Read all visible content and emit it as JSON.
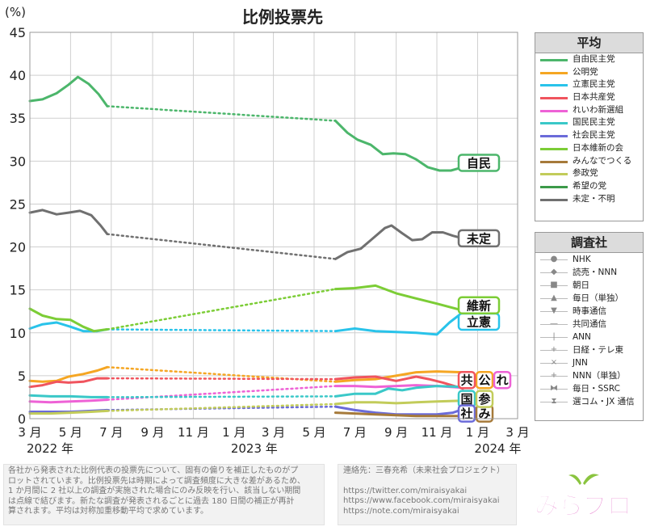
{
  "chart_data": {
    "type": "line",
    "title": "比例投票先",
    "ylabel": "(%)",
    "ylim": [
      0,
      45
    ],
    "yticks": [
      0,
      5,
      10,
      15,
      20,
      25,
      30,
      35,
      40,
      45
    ],
    "xlim": [
      "2022-03-01",
      "2024-03-01"
    ],
    "xticks": [
      {
        "date": "2022-03-01",
        "label": "3 月"
      },
      {
        "date": "2022-05-01",
        "label": "5 月"
      },
      {
        "date": "2022-07-01",
        "label": "7 月"
      },
      {
        "date": "2022-09-01",
        "label": "9 月"
      },
      {
        "date": "2022-11-01",
        "label": "11 月"
      },
      {
        "date": "2023-01-01",
        "label": "1 月"
      },
      {
        "date": "2023-03-01",
        "label": "3 月"
      },
      {
        "date": "2023-05-01",
        "label": "5 月"
      },
      {
        "date": "2023-07-01",
        "label": "7 月"
      },
      {
        "date": "2023-09-01",
        "label": "9 月"
      },
      {
        "date": "2023-11-01",
        "label": "11 月"
      },
      {
        "date": "2024-01-01",
        "label": "1 月"
      },
      {
        "date": "2024-03-01",
        "label": "3 月"
      }
    ],
    "year_labels": [
      {
        "date": "2022-03-01",
        "label": "2022 年"
      },
      {
        "date": "2023-01-01",
        "label": "2023 年"
      },
      {
        "date": "2024-01-01",
        "label": "2024 年"
      }
    ],
    "gap": [
      "2022-06-25",
      "2023-06-02"
    ],
    "grid": true,
    "series": [
      {
        "name": "自由民主党",
        "color": "#4cb66b",
        "end_label": "自民",
        "label_y": 29.8,
        "points": [
          [
            "2022-03-01",
            37.0
          ],
          [
            "2022-03-20",
            37.2
          ],
          [
            "2022-04-10",
            37.9
          ],
          [
            "2022-04-28",
            38.9
          ],
          [
            "2022-05-12",
            39.8
          ],
          [
            "2022-05-28",
            39.0
          ],
          [
            "2022-06-12",
            37.8
          ],
          [
            "2022-06-25",
            36.4
          ],
          [
            "2023-06-02",
            34.7
          ],
          [
            "2023-06-20",
            33.3
          ],
          [
            "2023-07-05",
            32.5
          ],
          [
            "2023-07-25",
            31.9
          ],
          [
            "2023-08-12",
            30.8
          ],
          [
            "2023-08-28",
            30.9
          ],
          [
            "2023-09-15",
            30.8
          ],
          [
            "2023-10-01",
            30.2
          ],
          [
            "2023-10-18",
            29.3
          ],
          [
            "2023-11-05",
            28.9
          ],
          [
            "2023-11-22",
            28.9
          ],
          [
            "2023-12-01",
            29.1
          ],
          [
            "2023-12-10",
            29.3
          ]
        ]
      },
      {
        "name": "公明党",
        "color": "#f5a623",
        "end_label": "公",
        "label_y": 4.5,
        "points": [
          [
            "2022-03-01",
            4.4
          ],
          [
            "2022-03-20",
            4.3
          ],
          [
            "2022-04-10",
            4.4
          ],
          [
            "2022-04-28",
            4.9
          ],
          [
            "2022-05-20",
            5.2
          ],
          [
            "2022-06-10",
            5.6
          ],
          [
            "2022-06-25",
            6.0
          ],
          [
            "2023-06-02",
            4.3
          ],
          [
            "2023-07-01",
            4.5
          ],
          [
            "2023-08-01",
            4.6
          ],
          [
            "2023-09-01",
            5.0
          ],
          [
            "2023-10-01",
            5.4
          ],
          [
            "2023-11-01",
            5.5
          ],
          [
            "2023-12-10",
            5.4
          ]
        ]
      },
      {
        "name": "立憲民主党",
        "color": "#29c3ea",
        "end_label": "立憲",
        "label_y": 11.3,
        "points": [
          [
            "2022-03-01",
            10.5
          ],
          [
            "2022-03-20",
            11.0
          ],
          [
            "2022-04-10",
            11.2
          ],
          [
            "2022-05-01",
            10.7
          ],
          [
            "2022-05-20",
            10.2
          ],
          [
            "2022-06-10",
            10.2
          ],
          [
            "2022-06-25",
            10.4
          ],
          [
            "2023-06-02",
            10.2
          ],
          [
            "2023-07-01",
            10.5
          ],
          [
            "2023-08-01",
            10.2
          ],
          [
            "2023-09-01",
            10.1
          ],
          [
            "2023-10-01",
            10.0
          ],
          [
            "2023-11-01",
            9.8
          ],
          [
            "2023-11-20",
            11.2
          ],
          [
            "2023-12-10",
            12.4
          ]
        ]
      },
      {
        "name": "日本共産党",
        "color": "#f0545e",
        "end_label": "共",
        "label_y": 4.5,
        "points": [
          [
            "2022-03-01",
            3.7
          ],
          [
            "2022-03-20",
            3.9
          ],
          [
            "2022-04-10",
            4.3
          ],
          [
            "2022-04-28",
            4.2
          ],
          [
            "2022-05-20",
            4.3
          ],
          [
            "2022-06-10",
            4.7
          ],
          [
            "2022-06-25",
            4.7
          ],
          [
            "2023-06-02",
            4.6
          ],
          [
            "2023-07-01",
            4.8
          ],
          [
            "2023-08-01",
            4.9
          ],
          [
            "2023-09-01",
            4.4
          ],
          [
            "2023-10-01",
            4.9
          ],
          [
            "2023-10-20",
            4.6
          ],
          [
            "2023-11-10",
            4.2
          ],
          [
            "2023-12-10",
            3.5
          ]
        ]
      },
      {
        "name": "れいわ新選組",
        "color": "#ee62d6",
        "end_label": "れ",
        "label_y": 4.5,
        "points": [
          [
            "2022-03-01",
            2.0
          ],
          [
            "2022-04-01",
            1.9
          ],
          [
            "2022-05-01",
            2.0
          ],
          [
            "2022-06-01",
            2.1
          ],
          [
            "2022-06-25",
            2.2
          ],
          [
            "2023-06-02",
            3.8
          ],
          [
            "2023-07-01",
            3.8
          ],
          [
            "2023-08-01",
            3.7
          ],
          [
            "2023-09-01",
            3.8
          ],
          [
            "2023-10-01",
            3.9
          ],
          [
            "2023-11-01",
            3.8
          ],
          [
            "2023-12-10",
            3.6
          ]
        ]
      },
      {
        "name": "国民民主党",
        "color": "#3ac8c8",
        "end_label": "国",
        "label_y": 2.3,
        "points": [
          [
            "2022-03-01",
            2.7
          ],
          [
            "2022-04-01",
            2.6
          ],
          [
            "2022-05-01",
            2.6
          ],
          [
            "2022-06-01",
            2.5
          ],
          [
            "2022-06-25",
            2.5
          ],
          [
            "2023-06-02",
            2.6
          ],
          [
            "2023-07-01",
            2.9
          ],
          [
            "2023-08-01",
            2.9
          ],
          [
            "2023-08-20",
            3.5
          ],
          [
            "2023-09-10",
            3.3
          ],
          [
            "2023-10-01",
            3.6
          ],
          [
            "2023-11-01",
            3.8
          ],
          [
            "2023-12-10",
            3.7
          ]
        ]
      },
      {
        "name": "社会民主党",
        "color": "#6b6bd9",
        "end_label": "社",
        "label_y": 0.6,
        "points": [
          [
            "2022-03-01",
            0.8
          ],
          [
            "2022-04-01",
            0.8
          ],
          [
            "2022-05-01",
            0.8
          ],
          [
            "2022-06-01",
            0.9
          ],
          [
            "2022-06-25",
            1.0
          ],
          [
            "2023-06-02",
            1.4
          ],
          [
            "2023-07-01",
            1.0
          ],
          [
            "2023-08-01",
            0.7
          ],
          [
            "2023-09-01",
            0.5
          ],
          [
            "2023-10-01",
            0.5
          ],
          [
            "2023-11-01",
            0.5
          ],
          [
            "2023-11-25",
            0.7
          ],
          [
            "2023-12-10",
            1.1
          ]
        ]
      },
      {
        "name": "日本維新の会",
        "color": "#7ccd36",
        "end_label": "維新",
        "label_y": 13.2,
        "points": [
          [
            "2022-03-01",
            12.8
          ],
          [
            "2022-03-20",
            12.0
          ],
          [
            "2022-04-10",
            11.6
          ],
          [
            "2022-05-01",
            11.5
          ],
          [
            "2022-05-20",
            10.7
          ],
          [
            "2022-06-05",
            10.2
          ],
          [
            "2022-06-25",
            10.4
          ],
          [
            "2023-06-02",
            15.1
          ],
          [
            "2023-07-01",
            15.2
          ],
          [
            "2023-08-01",
            15.5
          ],
          [
            "2023-09-01",
            14.6
          ],
          [
            "2023-10-01",
            14.0
          ],
          [
            "2023-11-01",
            13.4
          ],
          [
            "2023-12-10",
            12.6
          ]
        ]
      },
      {
        "name": "みんなでつくる",
        "color": "#a67a3a",
        "end_label": "み",
        "label_y": 0.6,
        "points": [
          [
            "2023-06-02",
            0.7
          ],
          [
            "2023-07-01",
            0.6
          ],
          [
            "2023-08-01",
            0.5
          ],
          [
            "2023-09-01",
            0.4
          ],
          [
            "2023-10-01",
            0.3
          ],
          [
            "2023-11-01",
            0.3
          ],
          [
            "2023-12-10",
            0.3
          ]
        ]
      },
      {
        "name": "参政党",
        "color": "#c2cc5a",
        "end_label": "参",
        "label_y": 2.3,
        "points": [
          [
            "2022-03-01",
            0.6
          ],
          [
            "2022-04-01",
            0.6
          ],
          [
            "2022-05-01",
            0.7
          ],
          [
            "2022-06-01",
            0.8
          ],
          [
            "2022-06-25",
            0.9
          ],
          [
            "2023-06-02",
            1.7
          ],
          [
            "2023-07-01",
            1.9
          ],
          [
            "2023-08-01",
            1.9
          ],
          [
            "2023-09-01",
            1.8
          ],
          [
            "2023-10-01",
            1.9
          ],
          [
            "2023-11-01",
            2.0
          ],
          [
            "2023-12-10",
            2.1
          ]
        ]
      },
      {
        "name": "希望の党",
        "color": "#3c9a4a",
        "end_label": "",
        "label_y": null,
        "points": []
      },
      {
        "name": "未定・不明",
        "color": "#707070",
        "end_label": "未定",
        "label_y": 21.0,
        "points": [
          [
            "2022-03-01",
            24.0
          ],
          [
            "2022-03-20",
            24.3
          ],
          [
            "2022-04-10",
            23.8
          ],
          [
            "2022-04-28",
            24.0
          ],
          [
            "2022-05-15",
            24.2
          ],
          [
            "2022-06-01",
            23.7
          ],
          [
            "2022-06-15",
            22.5
          ],
          [
            "2022-06-25",
            21.5
          ],
          [
            "2023-06-02",
            18.6
          ],
          [
            "2023-06-20",
            19.4
          ],
          [
            "2023-07-10",
            19.8
          ],
          [
            "2023-07-25",
            20.8
          ],
          [
            "2023-08-15",
            22.2
          ],
          [
            "2023-08-25",
            22.5
          ],
          [
            "2023-09-10",
            21.6
          ],
          [
            "2023-09-25",
            20.8
          ],
          [
            "2023-10-10",
            20.9
          ],
          [
            "2023-10-25",
            21.7
          ],
          [
            "2023-11-10",
            21.7
          ],
          [
            "2023-11-25",
            21.3
          ],
          [
            "2023-12-10",
            21.0
          ]
        ]
      }
    ]
  },
  "legend": {
    "title": "平均",
    "items": [
      {
        "name": "自由民主党",
        "color": "#4cb66b"
      },
      {
        "name": "公明党",
        "color": "#f5a623"
      },
      {
        "name": "立憲民主党",
        "color": "#29c3ea"
      },
      {
        "name": "日本共産党",
        "color": "#f0545e"
      },
      {
        "name": "れいわ新選組",
        "color": "#ee62d6"
      },
      {
        "name": "国民民主党",
        "color": "#3ac8c8"
      },
      {
        "name": "社会民主党",
        "color": "#6b6bd9"
      },
      {
        "name": "日本維新の会",
        "color": "#7ccd36"
      },
      {
        "name": "みんなでつくる",
        "color": "#a67a3a"
      },
      {
        "name": "参政党",
        "color": "#c2cc5a"
      },
      {
        "name": "希望の党",
        "color": "#3c9a4a"
      },
      {
        "name": "未定・不明",
        "color": "#707070"
      }
    ]
  },
  "survey": {
    "title": "調査社",
    "items": [
      {
        "name": "NHK",
        "marker": "●"
      },
      {
        "name": "読売・NNN",
        "marker": "◆"
      },
      {
        "name": "朝日",
        "marker": "■"
      },
      {
        "name": "毎日（単独）",
        "marker": "▲"
      },
      {
        "name": "時事通信",
        "marker": "▼"
      },
      {
        "name": "共同通信",
        "marker": "—"
      },
      {
        "name": "ANN",
        "marker": "|"
      },
      {
        "name": "日経・テレ東",
        "marker": "+"
      },
      {
        "name": "JNN",
        "marker": "×"
      },
      {
        "name": "NNN（単独）",
        "marker": "+"
      },
      {
        "name": "毎日・SSRC",
        "marker": "⧓"
      },
      {
        "name": "選コム・JX 通信",
        "marker": "⧗"
      }
    ]
  },
  "notes": {
    "left": [
      "各社から発表された比例代表の投票先について、固有の偏りを補正したものがプ",
      "ロットされています。比例投票先は時期によって調査頻度に大きな差があるため、",
      "1 か月間に 2 社以上の調査が実施された場合にのみ反映を行い、該当しない期間",
      "は点線で結びます。新たな調査が発表されるごとに過去 180 日間の補正が再計",
      "算されます。平均は対称加重移動平均で求めています。"
    ],
    "right": [
      "連絡先：三春充希（未来社会プロジェクト）",
      "",
      "https://twitter.com/miraisyakai",
      "https://www.facebook.com/miraisyakai",
      "https://note.com/miraisyakai"
    ]
  },
  "logo": {
    "text": "みらプロ"
  }
}
